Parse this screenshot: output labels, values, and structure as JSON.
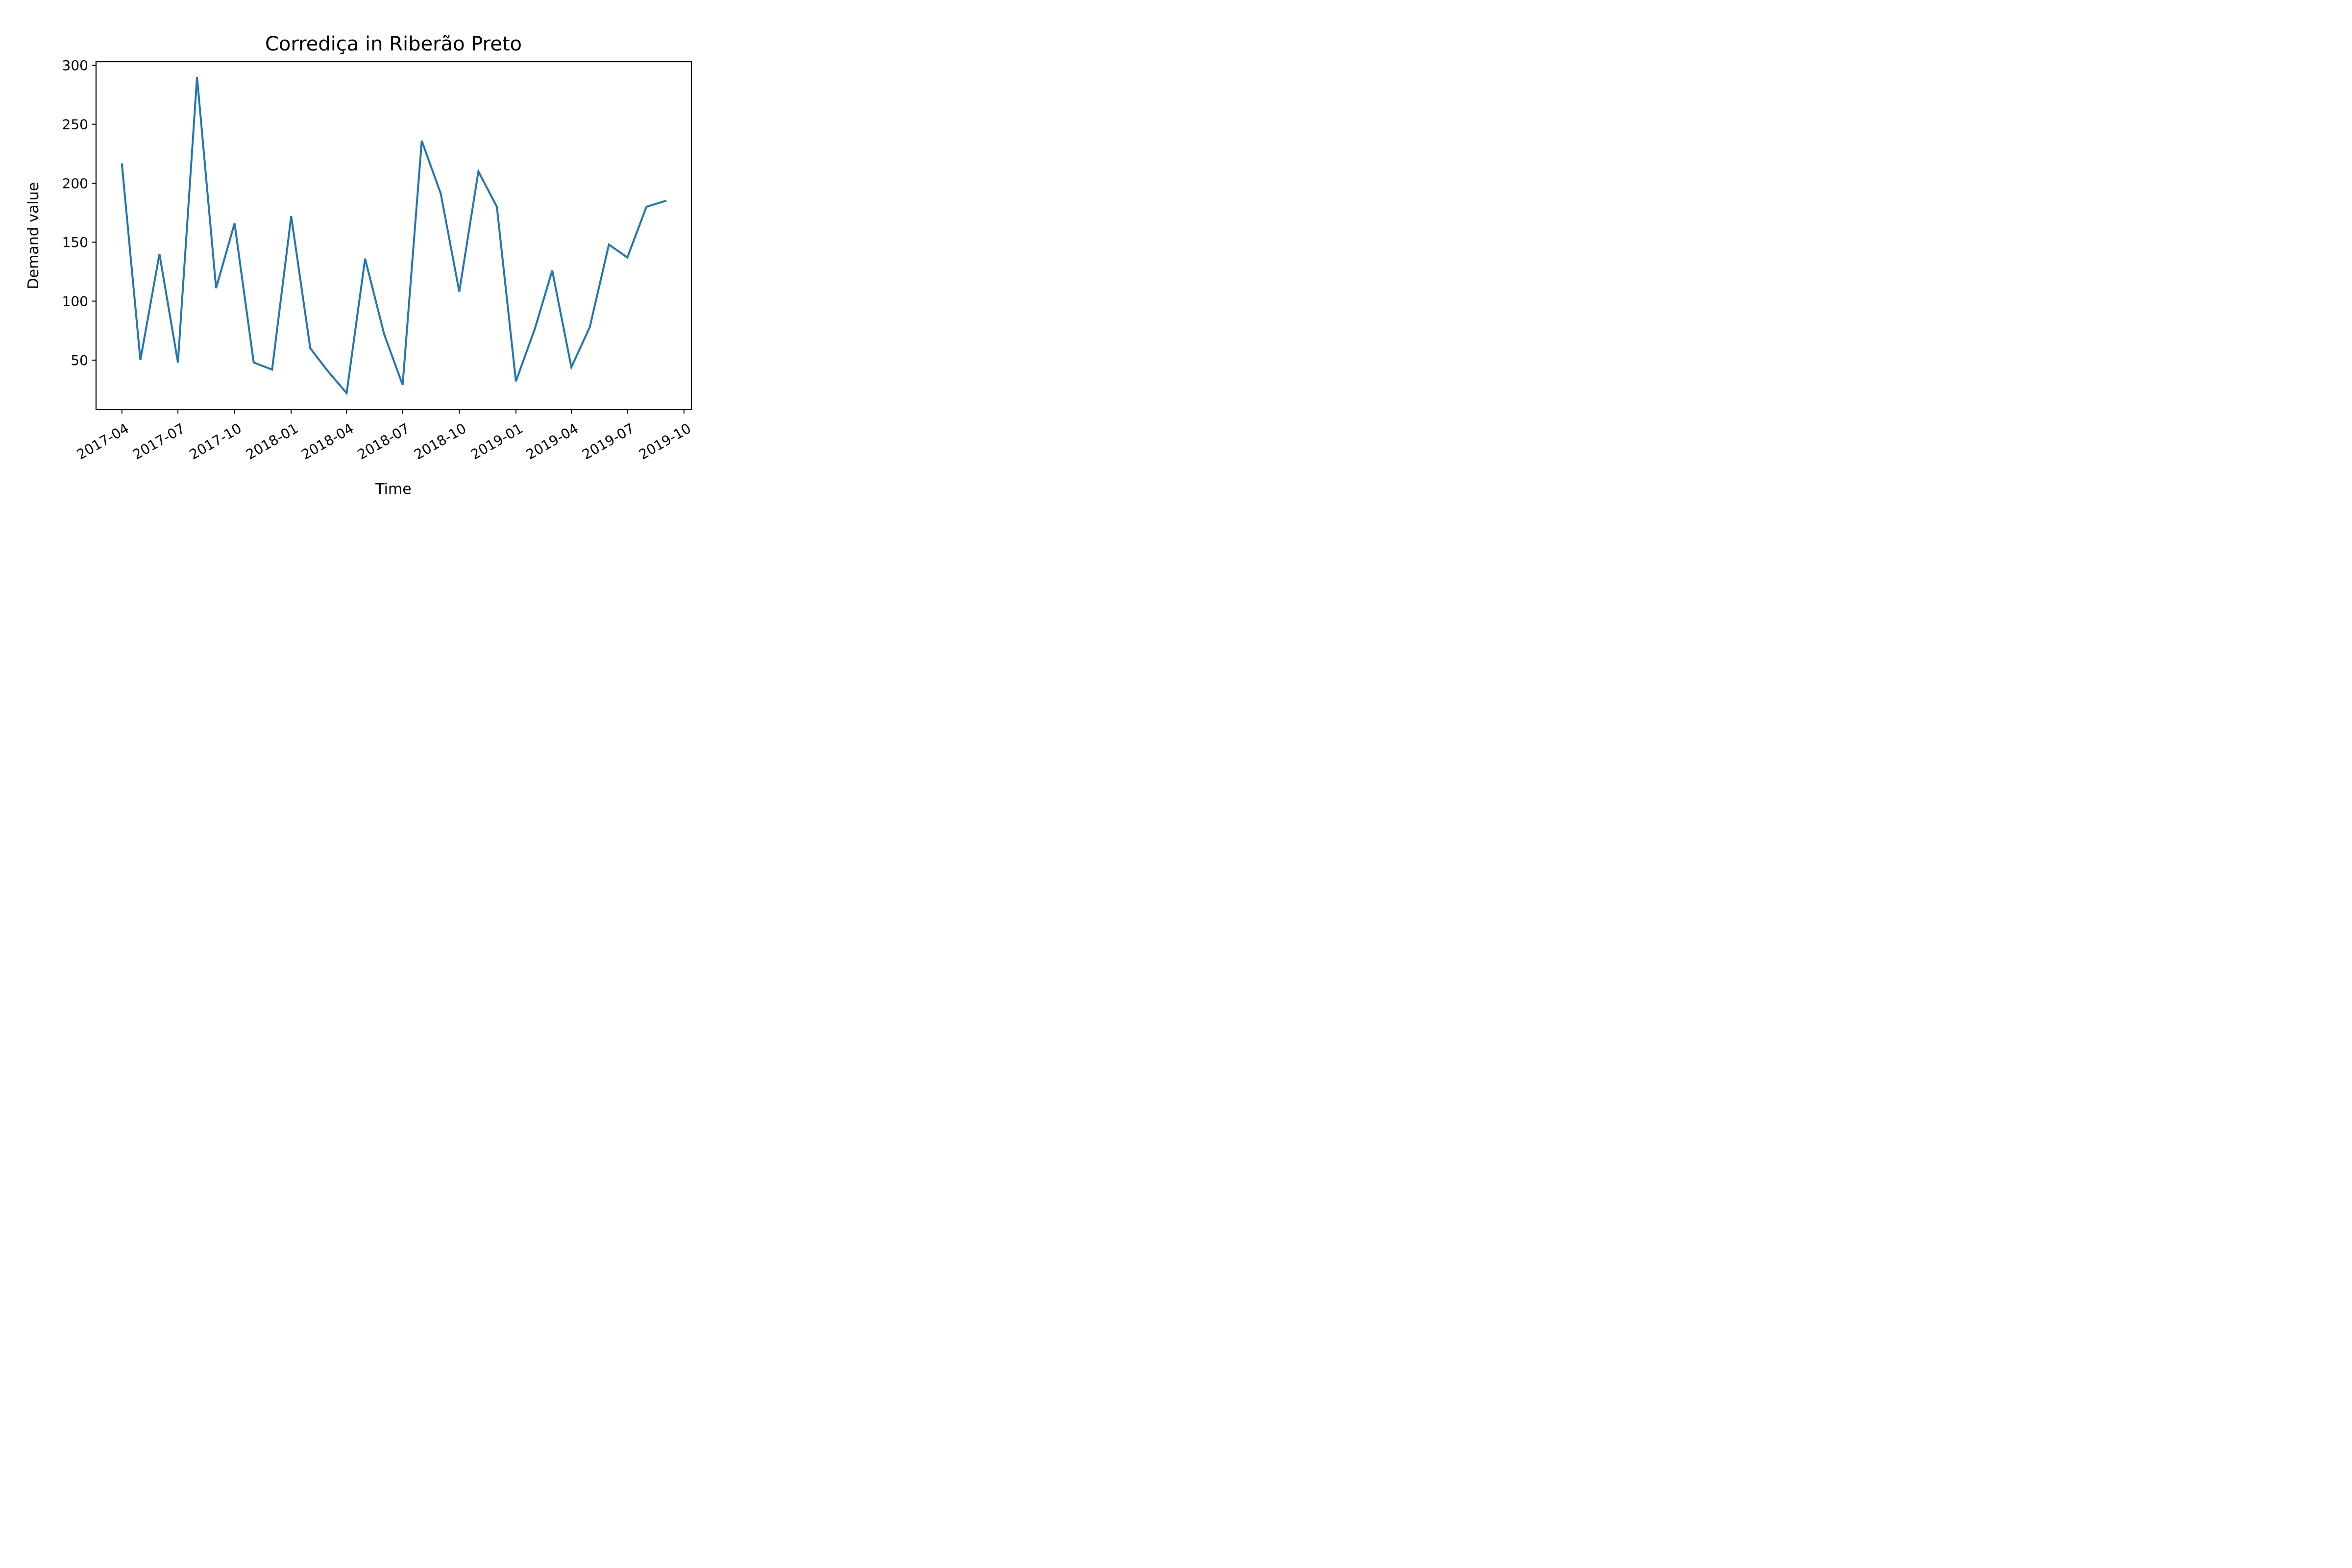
{
  "chart_data": {
    "type": "line",
    "title": "Corrediça in Riberão Preto",
    "xlabel": "Time",
    "ylabel": "Demand value",
    "x": [
      "2017-04-01",
      "2017-05-01",
      "2017-06-01",
      "2017-07-01",
      "2017-08-01",
      "2017-09-01",
      "2017-10-01",
      "2017-11-01",
      "2017-12-01",
      "2018-01-01",
      "2018-02-01",
      "2018-03-01",
      "2018-04-01",
      "2018-05-01",
      "2018-06-01",
      "2018-07-01",
      "2018-08-01",
      "2018-09-01",
      "2018-10-01",
      "2018-11-01",
      "2018-12-01",
      "2019-01-01",
      "2019-02-01",
      "2019-03-01",
      "2019-04-01",
      "2019-05-01",
      "2019-06-01",
      "2019-07-01",
      "2019-08-01",
      "2019-09-01"
    ],
    "series": [
      {
        "values": [
          216,
          50,
          140,
          48,
          290,
          111,
          166,
          48,
          42,
          172,
          60,
          41,
          22,
          136,
          72,
          29,
          236,
          191,
          108,
          210,
          180,
          32,
          77,
          126,
          44,
          78,
          148,
          137,
          180,
          185
        ],
        "color": "#1f77b4"
      }
    ],
    "xticks": [
      "2017-04",
      "2017-07",
      "2017-10",
      "2018-01",
      "2018-04",
      "2018-07",
      "2018-10",
      "2019-01",
      "2019-04",
      "2019-07",
      "2019-10"
    ],
    "yticks": [
      50,
      100,
      150,
      200,
      250,
      300
    ],
    "xlim": [
      "2017-02-18",
      "2019-10-13"
    ],
    "ylim": [
      8,
      303
    ],
    "grid": false,
    "legend": "none"
  }
}
